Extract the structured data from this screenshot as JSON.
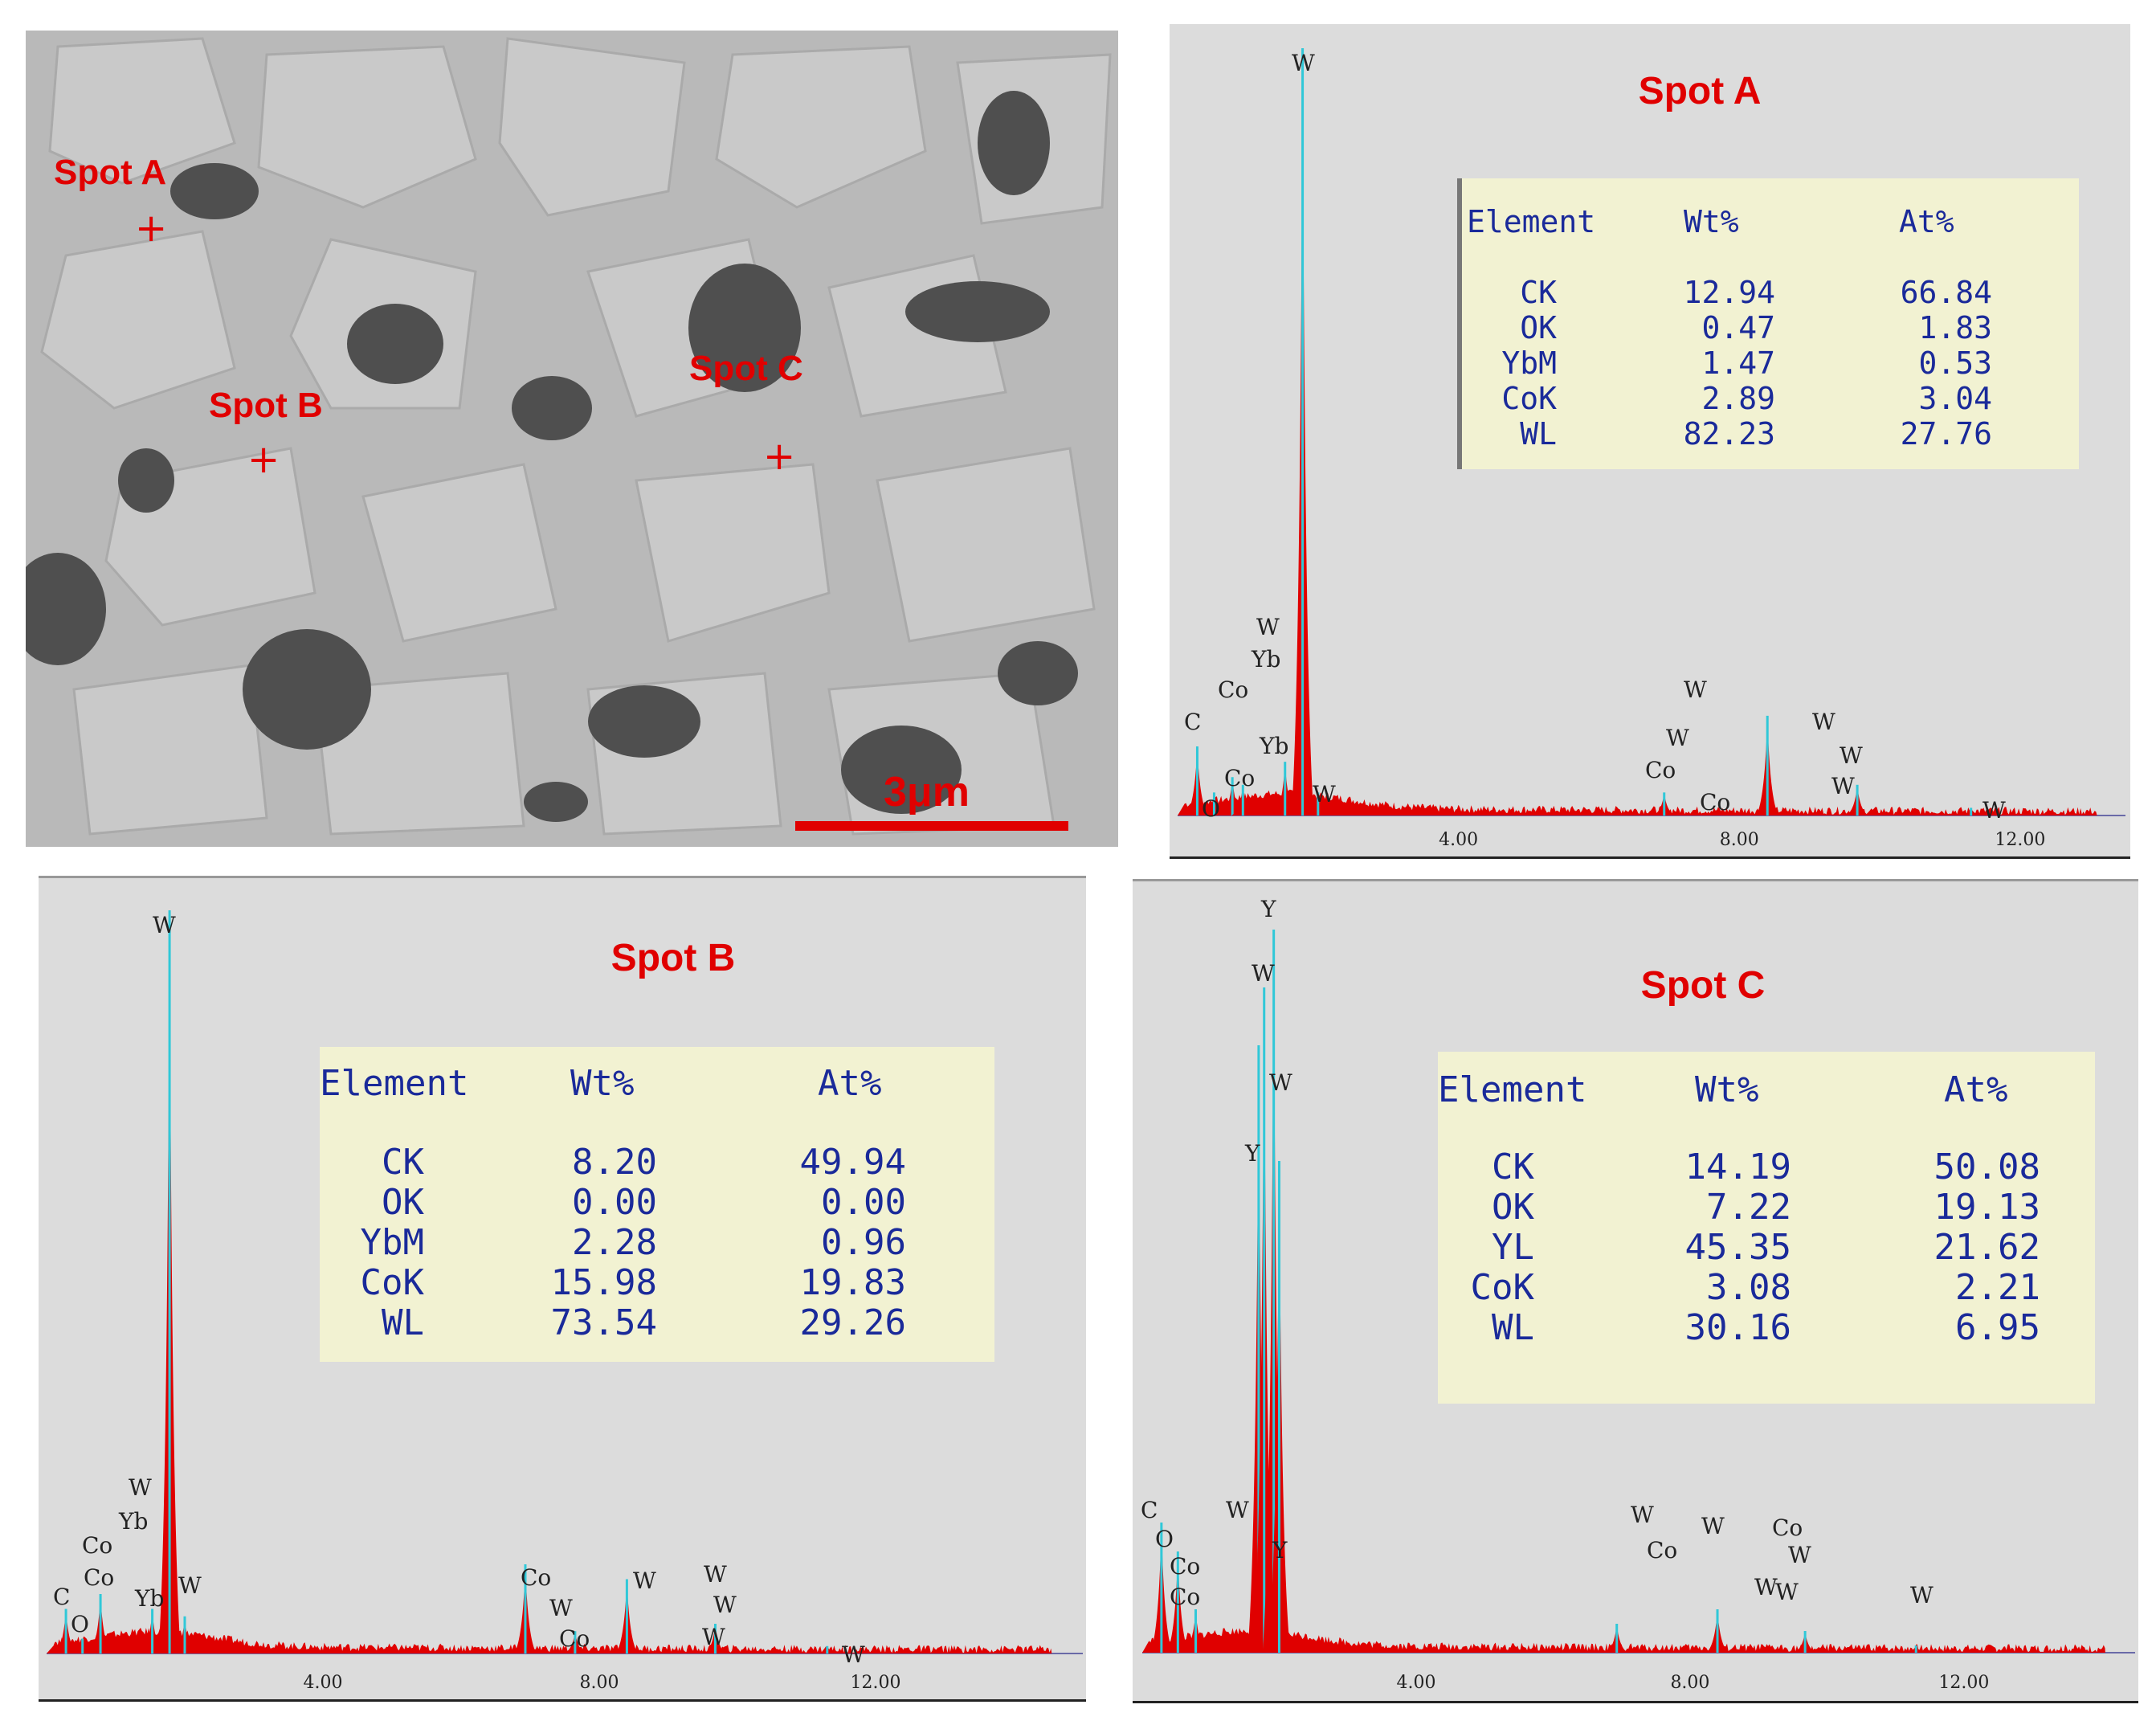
{
  "sem_image": {
    "scale_label": "3μm",
    "spots": [
      {
        "label": "Spot A"
      },
      {
        "label": "Spot B"
      },
      {
        "label": "Spot C"
      }
    ],
    "marker_color": "#e00000"
  },
  "chart_data": [
    {
      "type": "line",
      "title": "Spot A",
      "x_ticks": [
        "4.00",
        "8.00",
        "12.00"
      ],
      "xlim": [
        0,
        13.5
      ],
      "peaks": [
        {
          "label": "C",
          "x": 0.28,
          "h": 0.09
        },
        {
          "label": "O",
          "x": 0.52,
          "h": 0.03
        },
        {
          "label": "Co",
          "x": 0.78,
          "h": 0.05
        },
        {
          "label": "Co",
          "x": 0.93,
          "h": 0.04
        },
        {
          "label": "Yb",
          "x": 1.53,
          "h": 0.07
        },
        {
          "label": "W",
          "x": 1.78,
          "h": 1.0
        },
        {
          "label": "W",
          "x": 2.0,
          "h": 0.03
        },
        {
          "label": "Co",
          "x": 6.93,
          "h": 0.03
        },
        {
          "label": "W",
          "x": 8.4,
          "h": 0.13
        },
        {
          "label": "W",
          "x": 9.68,
          "h": 0.04
        },
        {
          "label": "W",
          "x": 11.3,
          "h": 0.01
        }
      ],
      "peak_labels": [
        "W",
        "W",
        "Yb",
        "Co",
        "C",
        "Co",
        "O",
        "Yb",
        "W",
        "W",
        "Co",
        "W",
        "Co",
        "W",
        "W",
        "W",
        "W"
      ],
      "table": {
        "headers": [
          "Element",
          "Wt%",
          "At%"
        ],
        "rows": [
          [
            "CK",
            "12.94",
            "66.84"
          ],
          [
            "OK",
            "0.47",
            "1.83"
          ],
          [
            "YbM",
            "1.47",
            "0.53"
          ],
          [
            "CoK",
            "2.89",
            "3.04"
          ],
          [
            "WL",
            "82.23",
            "27.76"
          ]
        ]
      }
    },
    {
      "type": "line",
      "title": "Spot B",
      "x_ticks": [
        "4.00",
        "8.00",
        "12.00"
      ],
      "xlim": [
        0,
        15
      ],
      "peaks": [
        {
          "label": "C",
          "x": 0.28,
          "h": 0.06
        },
        {
          "label": "O",
          "x": 0.52,
          "h": 0.02
        },
        {
          "label": "Co",
          "x": 0.78,
          "h": 0.08
        },
        {
          "label": "Yb",
          "x": 1.53,
          "h": 0.06
        },
        {
          "label": "W",
          "x": 1.78,
          "h": 1.0
        },
        {
          "label": "W",
          "x": 2.0,
          "h": 0.05
        },
        {
          "label": "Co",
          "x": 6.93,
          "h": 0.12
        },
        {
          "label": "Co",
          "x": 7.65,
          "h": 0.03
        },
        {
          "label": "W",
          "x": 8.4,
          "h": 0.1
        },
        {
          "label": "W",
          "x": 9.68,
          "h": 0.04
        },
        {
          "label": "W",
          "x": 11.3,
          "h": 0.01
        }
      ],
      "peak_labels": [
        "W",
        "W",
        "Yb",
        "Co",
        "Co",
        "C",
        "O",
        "Yb",
        "W",
        "Co",
        "W",
        "Co",
        "W",
        "W",
        "W",
        "W",
        "W"
      ],
      "table": {
        "headers": [
          "Element",
          "Wt%",
          "At%"
        ],
        "rows": [
          [
            "CK",
            "8.20",
            "49.94"
          ],
          [
            "OK",
            "0.00",
            "0.00"
          ],
          [
            "YbM",
            "2.28",
            "0.96"
          ],
          [
            "CoK",
            "15.98",
            "19.83"
          ],
          [
            "WL",
            "73.54",
            "29.26"
          ]
        ]
      }
    },
    {
      "type": "line",
      "title": "Spot C",
      "x_ticks": [
        "4.00",
        "8.00",
        "12.00"
      ],
      "xlim": [
        0,
        14.5
      ],
      "peaks": [
        {
          "label": "C",
          "x": 0.28,
          "h": 0.18
        },
        {
          "label": "O",
          "x": 0.52,
          "h": 0.14
        },
        {
          "label": "Co",
          "x": 0.78,
          "h": 0.06
        },
        {
          "label": "Y",
          "x": 1.7,
          "h": 0.84
        },
        {
          "label": "W",
          "x": 1.78,
          "h": 0.92
        },
        {
          "label": "Y",
          "x": 1.92,
          "h": 1.0
        },
        {
          "label": "W",
          "x": 2.0,
          "h": 0.68
        },
        {
          "label": "Co",
          "x": 6.93,
          "h": 0.04
        },
        {
          "label": "W",
          "x": 8.4,
          "h": 0.06
        },
        {
          "label": "W",
          "x": 9.68,
          "h": 0.03
        },
        {
          "label": "W",
          "x": 11.3,
          "h": 0.01
        }
      ],
      "peak_labels": [
        "Y",
        "W",
        "W",
        "Y",
        "C",
        "O",
        "W",
        "Y",
        "Co",
        "Co",
        "W",
        "Co",
        "W",
        "W",
        "Co",
        "W",
        "W",
        "W"
      ],
      "table": {
        "headers": [
          "Element",
          "Wt%",
          "At%"
        ],
        "rows": [
          [
            "CK",
            "14.19",
            "50.08"
          ],
          [
            "OK",
            "7.22",
            "19.13"
          ],
          [
            "YL",
            "45.35",
            "21.62"
          ],
          [
            "CoK",
            "3.08",
            "2.21"
          ],
          [
            "WL",
            "30.16",
            "6.95"
          ]
        ]
      }
    }
  ],
  "colors": {
    "spectrum_fill": "#e00000",
    "spectrum_overlay": "#30c8d8",
    "table_text": "#1a2a9a",
    "title": "#e00000"
  }
}
